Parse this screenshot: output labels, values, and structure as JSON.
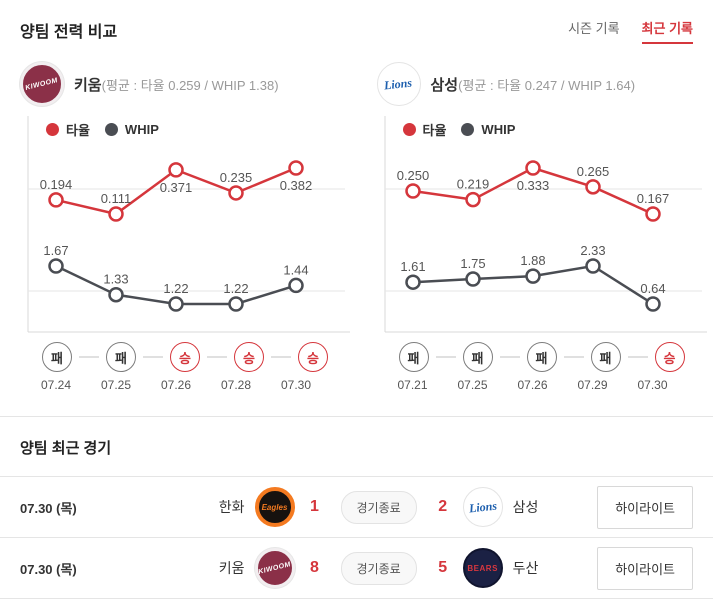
{
  "header": {
    "title": "양팀 전력 비교",
    "tabs": [
      {
        "label": "시즌 기록",
        "active": false
      },
      {
        "label": "최근 기록",
        "active": true
      }
    ]
  },
  "colors": {
    "accent_red": "#d5363c",
    "whip_dark": "#4a4d53",
    "grid": "#e6e6e6",
    "axis": "#d9d9d9"
  },
  "teams": [
    {
      "name": "키움",
      "summary": "(평균 : 타율 0.259 / WHIP 1.38)",
      "logo_text": "KIWOOM"
    },
    {
      "name": "삼성",
      "summary": "(평균 : 타율 0.247 / WHIP 1.64)",
      "logo_text": "Lions"
    }
  ],
  "chart_data": [
    {
      "type": "line",
      "team": "키움",
      "legend": [
        "타율",
        "WHIP"
      ],
      "categories": [
        "07.24",
        "07.25",
        "07.26",
        "07.28",
        "07.30"
      ],
      "results": [
        "패",
        "패",
        "승",
        "승",
        "승"
      ],
      "series": [
        {
          "name": "타율",
          "values": [
            0.194,
            0.111,
            0.371,
            0.235,
            0.382
          ],
          "labels": [
            "0.194",
            "0.111",
            "0.371",
            "0.235",
            "0.382"
          ],
          "color": "#d5363c",
          "label_side": [
            "above",
            "above",
            "below",
            "above",
            "below"
          ]
        },
        {
          "name": "WHIP",
          "values": [
            1.67,
            1.33,
            1.22,
            1.22,
            1.44
          ],
          "labels": [
            "1.67",
            "1.33",
            "1.22",
            "1.22",
            "1.44"
          ],
          "color": "#4a4d53",
          "label_side": [
            "above",
            "above",
            "above",
            "above",
            "above"
          ]
        }
      ]
    },
    {
      "type": "line",
      "team": "삼성",
      "legend": [
        "타율",
        "WHIP"
      ],
      "categories": [
        "07.21",
        "07.25",
        "07.26",
        "07.29",
        "07.30"
      ],
      "results": [
        "패",
        "패",
        "패",
        "패",
        "승"
      ],
      "series": [
        {
          "name": "타율",
          "values": [
            0.25,
            0.219,
            0.333,
            0.265,
            0.167
          ],
          "labels": [
            "0.250",
            "0.219",
            "0.333",
            "0.265",
            "0.167"
          ],
          "color": "#d5363c",
          "label_side": [
            "above",
            "above",
            "below",
            "above",
            "above"
          ]
        },
        {
          "name": "WHIP",
          "values": [
            1.61,
            1.75,
            1.88,
            2.33,
            0.64
          ],
          "labels": [
            "1.61",
            "1.75",
            "1.88",
            "2.33",
            "0.64"
          ],
          "color": "#4a4d53",
          "label_side": [
            "above",
            "above",
            "above",
            "above",
            "above"
          ]
        }
      ]
    }
  ],
  "recent_games": {
    "title": "양팀 최근 경기",
    "rows": [
      {
        "date": "07.30 (목)",
        "away": {
          "name": "한화",
          "score": "1",
          "logo_text": "Eagles"
        },
        "status": "경기종료",
        "home": {
          "name": "삼성",
          "score": "2",
          "logo_text": "Lions"
        },
        "highlight": "하이라이트"
      },
      {
        "date": "07.30 (목)",
        "away": {
          "name": "키움",
          "score": "8",
          "logo_text": "KIWOOM"
        },
        "status": "경기종료",
        "home": {
          "name": "두산",
          "score": "5",
          "logo_text": "BEARS"
        },
        "highlight": "하이라이트"
      }
    ]
  }
}
